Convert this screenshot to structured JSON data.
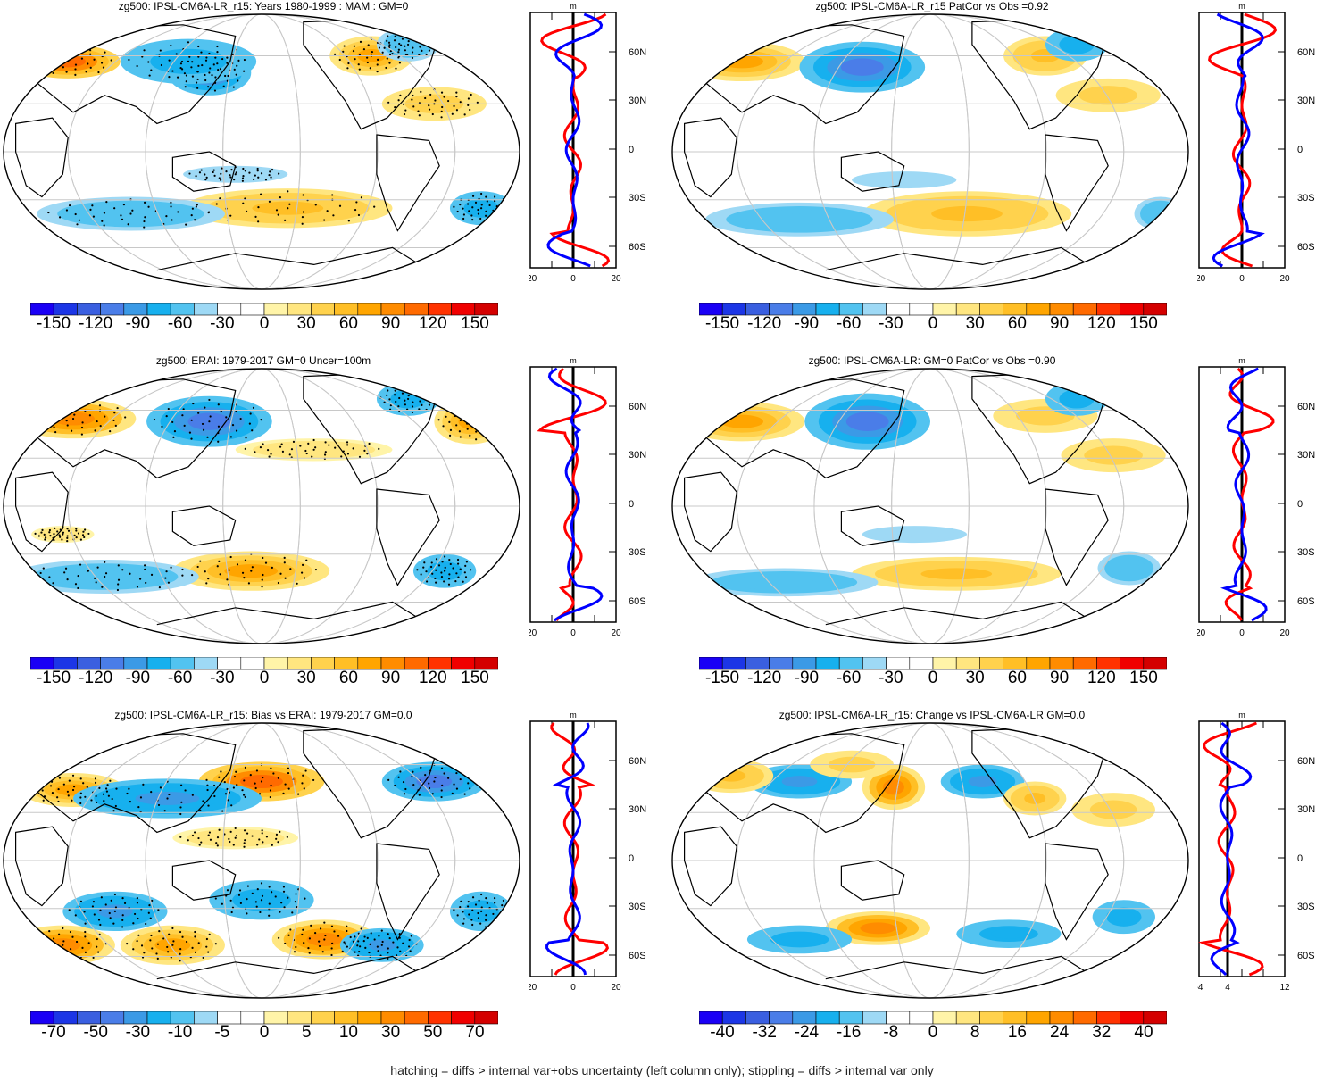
{
  "figure": {
    "footer": "hatching = diffs > internal var+obs uncertainty (left column only); stippling = diffs > internal var only",
    "colors": {
      "palette": [
        "#1a00f5",
        "#1c36e6",
        "#3a5fe0",
        "#4a7de8",
        "#3b9ae6",
        "#17b0ee",
        "#52c3f0",
        "#9ed9f5",
        "#ffffff",
        "#ffffff",
        "#fff4a8",
        "#ffe680",
        "#ffd24d",
        "#ffbf26",
        "#ffa500",
        "#ff8c00",
        "#ff6a00",
        "#ff3300",
        "#f00000",
        "#d40000"
      ],
      "land_outline": "#000000",
      "gridline": "#c8c8c8",
      "profile_blue": "#0000ff",
      "profile_red": "#ff0000"
    }
  },
  "panels": [
    {
      "title": "zg500: IPSL-CM6A-LR_r15: Years 1980-1999 : MAM : GM=0",
      "colorbar_labels": [
        "-150",
        "-120",
        "-90",
        "-60",
        "-30",
        "0",
        "30",
        "60",
        "90",
        "120",
        "150"
      ],
      "profile_axis_labels": [
        "-20",
        "0",
        "20"
      ],
      "lat_labels": [
        "60N",
        "30N",
        "0",
        "30S",
        "60S"
      ],
      "units": "m",
      "stippled": true
    },
    {
      "title": "zg500: IPSL-CM6A-LR_r15 PatCor vs Obs =0.92",
      "colorbar_labels": [
        "-150",
        "-120",
        "-90",
        "-60",
        "-30",
        "0",
        "30",
        "60",
        "90",
        "120",
        "150"
      ],
      "profile_axis_labels": [
        "-20",
        "0",
        "20"
      ],
      "lat_labels": [
        "60N",
        "30N",
        "0",
        "30S",
        "60S"
      ],
      "units": "m",
      "stippled": false
    },
    {
      "title": "zg500: ERAI: 1979-2017 GM=0 Uncer=100m",
      "colorbar_labels": [
        "-150",
        "-120",
        "-90",
        "-60",
        "-30",
        "0",
        "30",
        "60",
        "90",
        "120",
        "150"
      ],
      "profile_axis_labels": [
        "-20",
        "0",
        "20"
      ],
      "lat_labels": [
        "60N",
        "30N",
        "0",
        "30S",
        "60S"
      ],
      "units": "m",
      "stippled": true
    },
    {
      "title": "zg500: IPSL-CM6A-LR: GM=0 PatCor vs Obs =0.90",
      "colorbar_labels": [
        "-150",
        "-120",
        "-90",
        "-60",
        "-30",
        "0",
        "30",
        "60",
        "90",
        "120",
        "150"
      ],
      "profile_axis_labels": [
        "-20",
        "0",
        "20"
      ],
      "lat_labels": [
        "60N",
        "30N",
        "0",
        "30S",
        "60S"
      ],
      "units": "m",
      "stippled": false
    },
    {
      "title": "zg500: IPSL-CM6A-LR_r15: Bias vs ERAI: 1979-2017 GM=0.0",
      "colorbar_labels": [
        "-70",
        "-50",
        "-30",
        "-10",
        "-5",
        "0",
        "5",
        "10",
        "30",
        "50",
        "70"
      ],
      "profile_axis_labels": [
        "-20",
        "0",
        "20"
      ],
      "lat_labels": [
        "60N",
        "30N",
        "0",
        "30S",
        "60S"
      ],
      "units": "m",
      "stippled": true
    },
    {
      "title": "zg500: IPSL-CM6A-LR_r15: Change vs IPSL-CM6A-LR GM=0.0",
      "colorbar_labels": [
        "-40",
        "-32",
        "-24",
        "-16",
        "-8",
        "0",
        "8",
        "16",
        "24",
        "32",
        "40"
      ],
      "profile_axis_labels": [
        "-4",
        "4",
        "12"
      ],
      "lat_labels": [
        "60N",
        "30N",
        "0",
        "30S",
        "60S"
      ],
      "units": "m",
      "stippled": false
    }
  ],
  "chart_data": [
    {
      "type": "heatmap",
      "title": "zg500: IPSL-CM6A-LR_r15: Years 1980-1999 : MAM : GM=0",
      "colorbar_ticks": [
        -150,
        -120,
        -90,
        -60,
        -30,
        0,
        30,
        60,
        90,
        120,
        150
      ],
      "profile": {
        "xlim": [
          -20,
          20
        ],
        "ylabel_ticks": [
          "60N",
          "30N",
          "0",
          "30S",
          "60S"
        ]
      }
    },
    {
      "type": "heatmap",
      "title": "zg500: IPSL-CM6A-LR_r15 PatCor vs Obs =0.92",
      "colorbar_ticks": [
        -150,
        -120,
        -90,
        -60,
        -30,
        0,
        30,
        60,
        90,
        120,
        150
      ],
      "profile": {
        "xlim": [
          -20,
          20
        ],
        "ylabel_ticks": [
          "60N",
          "30N",
          "0",
          "30S",
          "60S"
        ]
      }
    },
    {
      "type": "heatmap",
      "title": "zg500: ERAI: 1979-2017 GM=0 Uncer=100m",
      "colorbar_ticks": [
        -150,
        -120,
        -90,
        -60,
        -30,
        0,
        30,
        60,
        90,
        120,
        150
      ],
      "profile": {
        "xlim": [
          -20,
          20
        ],
        "ylabel_ticks": [
          "60N",
          "30N",
          "0",
          "30S",
          "60S"
        ]
      }
    },
    {
      "type": "heatmap",
      "title": "zg500: IPSL-CM6A-LR: GM=0 PatCor vs Obs =0.90",
      "colorbar_ticks": [
        -150,
        -120,
        -90,
        -60,
        -30,
        0,
        30,
        60,
        90,
        120,
        150
      ],
      "profile": {
        "xlim": [
          -20,
          20
        ],
        "ylabel_ticks": [
          "60N",
          "30N",
          "0",
          "30S",
          "60S"
        ]
      }
    },
    {
      "type": "heatmap",
      "title": "zg500: IPSL-CM6A-LR_r15: Bias vs ERAI: 1979-2017 GM=0.0",
      "colorbar_ticks": [
        -70,
        -50,
        -30,
        -10,
        -5,
        0,
        5,
        10,
        30,
        50,
        70
      ],
      "profile": {
        "xlim": [
          -20,
          20
        ],
        "ylabel_ticks": [
          "60N",
          "30N",
          "0",
          "30S",
          "60S"
        ]
      }
    },
    {
      "type": "heatmap",
      "title": "zg500: IPSL-CM6A-LR_r15: Change vs IPSL-CM6A-LR GM=0.0",
      "colorbar_ticks": [
        -40,
        -32,
        -24,
        -16,
        -8,
        0,
        8,
        16,
        24,
        32,
        40
      ],
      "profile": {
        "xlim": [
          -8,
          16
        ],
        "ylabel_ticks": [
          "60N",
          "30N",
          "0",
          "30S",
          "60S"
        ]
      }
    }
  ]
}
